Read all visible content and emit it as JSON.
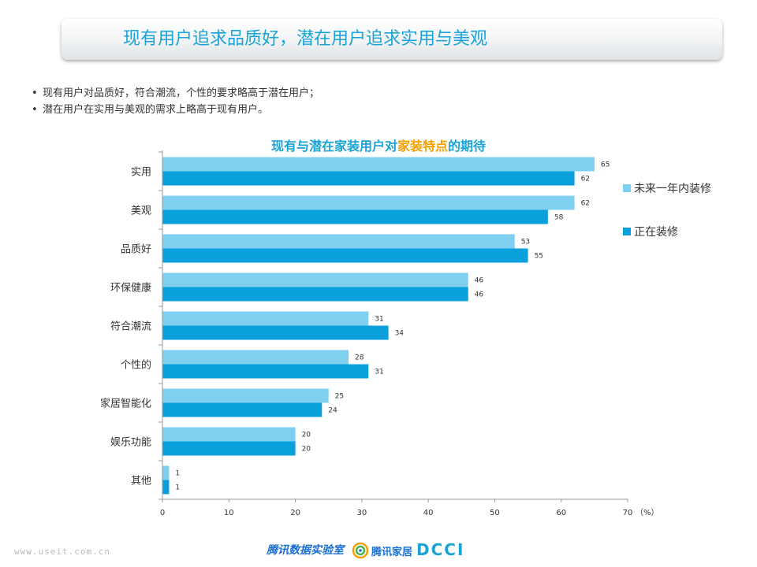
{
  "header": {
    "title": "现有用户追求品质好，潜在用户追求实用与美观"
  },
  "bullets": [
    "现有用户对品质好，符合潮流，个性的要求略高于潜在用户；",
    "潜在用户在实用与美观的需求上略高于现有用户。"
  ],
  "chart_data": {
    "type": "bar",
    "orientation": "horizontal",
    "title_parts": [
      "现有与潜在家装用户对",
      "家装特点",
      "的期待"
    ],
    "categories": [
      "实用",
      "美观",
      "品质好",
      "环保健康",
      "符合潮流",
      "个性的",
      "家居智能化",
      "娱乐功能",
      "其他"
    ],
    "series": [
      {
        "name": "未来一年内装修",
        "color": "#7fcff0",
        "values": [
          65,
          62,
          53,
          46,
          31,
          28,
          25,
          20,
          1
        ]
      },
      {
        "name": "正在装修",
        "color": "#0aa0dc",
        "values": [
          62,
          58,
          55,
          46,
          34,
          31,
          24,
          20,
          1
        ]
      }
    ],
    "xlim": [
      0,
      70
    ],
    "xticks": [
      0,
      10,
      20,
      30,
      40,
      50,
      60,
      70
    ],
    "x_unit": "（%）",
    "legend_position": "right",
    "grid": false
  },
  "footer": {
    "left": "www.useit.com.cn",
    "brand": "腾讯数据实验室",
    "logo2_text": "腾讯家居",
    "logo3_text": "DCCI"
  }
}
